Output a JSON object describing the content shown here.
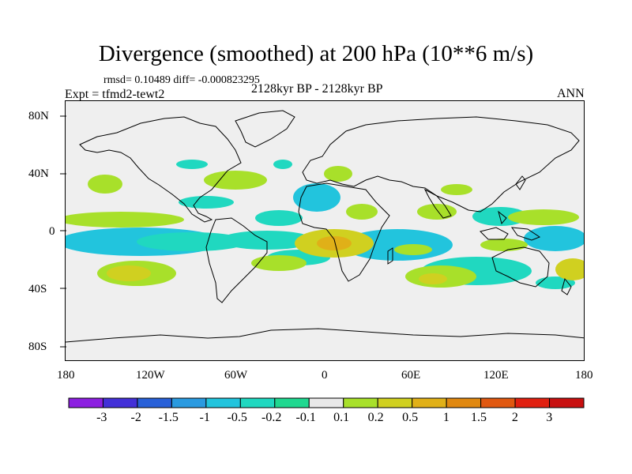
{
  "header": {
    "title": "Divergence (smoothed) at 200 hPa (10**6 m/s)",
    "stats": "rmsd= 0.10489 diff= -0.000823295",
    "experiment": "Expt = tfmd2-tewt2",
    "period": "2128kyr BP - 2128kyr BP",
    "season": "ANN"
  },
  "map": {
    "lat_labels": [
      "80N",
      "40N",
      "0",
      "40S",
      "80S"
    ],
    "lon_labels": [
      "180",
      "120W",
      "60W",
      "0",
      "60E",
      "120E",
      "180"
    ]
  },
  "colorbar": {
    "labels": [
      "-3",
      "-2",
      "-1.5",
      "-1",
      "-0.5",
      "-0.2",
      "-0.1",
      "0.1",
      "0.2",
      "0.5",
      "1",
      "1.5",
      "2",
      "3"
    ],
    "colors": [
      "#8c1fe0",
      "#4330d8",
      "#2860d8",
      "#2a9ae0",
      "#22c4dd",
      "#20d8c0",
      "#20d890",
      "#e8e8e8",
      "#a8e02a",
      "#d0d020",
      "#e0b018",
      "#e08810",
      "#e05810",
      "#e02010",
      "#c81010"
    ]
  },
  "colors": {
    "land_outline": "#000000",
    "background": "#efefef",
    "neutral": "#e8e8e8",
    "positive_light": "#a8e02a",
    "positive_mid": "#d0d020",
    "positive_high": "#e0b018",
    "negative_light": "#20d890",
    "negative_mid": "#20d8c0",
    "negative_high": "#22c4dd"
  }
}
